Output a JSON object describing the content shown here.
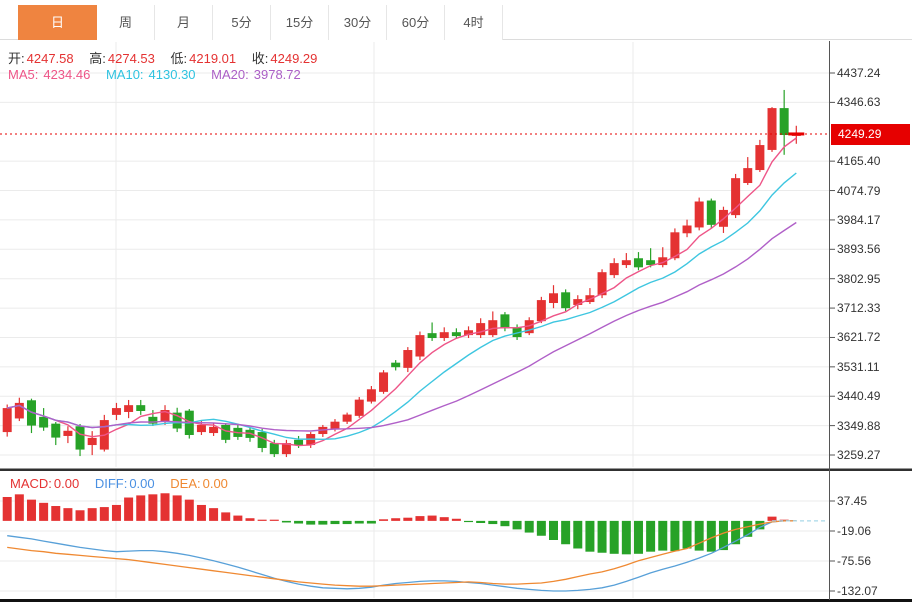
{
  "tabs": [
    {
      "id": "day",
      "label": "日",
      "active": true
    },
    {
      "id": "week",
      "label": "周",
      "active": false
    },
    {
      "id": "month",
      "label": "月",
      "active": false
    },
    {
      "id": "5min",
      "label": "5分",
      "active": false
    },
    {
      "id": "15min",
      "label": "15分",
      "active": false
    },
    {
      "id": "30min",
      "label": "30分",
      "active": false
    },
    {
      "id": "60min",
      "label": "60分",
      "active": false
    },
    {
      "id": "4hour",
      "label": "4时",
      "active": false
    }
  ],
  "info": {
    "open_label": "开:",
    "open": "4247.58",
    "high_label": "高:",
    "high": "4274.53",
    "low_label": "低:",
    "low": "4219.01",
    "close_label": "收:",
    "close": "4249.29",
    "ma5_label": "MA5:",
    "ma5": "4234.46",
    "ma10_label": "MA10:",
    "ma10": "4130.30",
    "ma20_label": "MA20:",
    "ma20": "3978.72"
  },
  "macd_info": {
    "macd_label": "MACD:",
    "macd": "0.00",
    "diff_label": "DIFF:",
    "diff": "0.00",
    "dea_label": "DEA:",
    "dea": "0.00"
  },
  "price_axis": {
    "current": "4249.29"
  },
  "colors": {
    "up": "#e43232",
    "down": "#27a227",
    "accent_tab": "#ef8440",
    "price_tag": "#e60000",
    "ma5": "#ee5588",
    "ma10": "#3ec6e0",
    "ma20": "#b060c8",
    "diff": "#58a0d8",
    "dea": "#ef8932",
    "grid": "#ebebeb",
    "border": "#303030"
  },
  "chart_data": {
    "type": "candlestick",
    "title": "",
    "periods": 66,
    "price_ticks": [
      4437.24,
      4346.63,
      null,
      4165.4,
      4074.79,
      3984.17,
      3893.56,
      3802.95,
      3712.33,
      3621.72,
      3531.11,
      3440.49,
      3349.88,
      3259.27
    ],
    "current_price": 4249.29,
    "ma_current": {
      "MA5": 4234.46,
      "MA10": 4130.3,
      "MA20": 3978.72
    },
    "candles": [
      [
        3330,
        3415,
        3316,
        3404
      ],
      [
        3372,
        3436,
        3364,
        3420
      ],
      [
        3428,
        3433,
        3327,
        3350
      ],
      [
        3377,
        3404,
        3334,
        3344
      ],
      [
        3356,
        3361,
        3290,
        3313
      ],
      [
        3318,
        3348,
        3296,
        3334
      ],
      [
        3348,
        3355,
        3256,
        3276
      ],
      [
        3290,
        3333,
        3259,
        3312
      ],
      [
        3276,
        3383,
        3270,
        3367
      ],
      [
        3383,
        3420,
        3367,
        3404
      ],
      [
        3392,
        3429,
        3373,
        3413
      ],
      [
        3413,
        3429,
        3383,
        3395
      ],
      [
        3377,
        3398,
        3349,
        3356
      ],
      [
        3361,
        3413,
        3352,
        3398
      ],
      [
        3390,
        3405,
        3330,
        3341
      ],
      [
        3396,
        3401,
        3310,
        3321
      ],
      [
        3330,
        3364,
        3321,
        3352
      ],
      [
        3327,
        3358,
        3318,
        3346
      ],
      [
        3352,
        3358,
        3296,
        3306
      ],
      [
        3343,
        3352,
        3306,
        3315
      ],
      [
        3337,
        3346,
        3300,
        3312
      ],
      [
        3330,
        3340,
        3268,
        3281
      ],
      [
        3296,
        3306,
        3253,
        3262
      ],
      [
        3262,
        3306,
        3253,
        3296
      ],
      [
        3306,
        3318,
        3281,
        3290
      ],
      [
        3290,
        3330,
        3281,
        3324
      ],
      [
        3324,
        3352,
        3315,
        3346
      ],
      [
        3340,
        3370,
        3332,
        3362
      ],
      [
        3362,
        3390,
        3355,
        3384
      ],
      [
        3380,
        3438,
        3374,
        3430
      ],
      [
        3424,
        3472,
        3418,
        3462
      ],
      [
        3454,
        3521,
        3448,
        3514
      ],
      [
        3544,
        3552,
        3520,
        3530
      ],
      [
        3528,
        3592,
        3515,
        3583
      ],
      [
        3563,
        3640,
        3552,
        3629
      ],
      [
        3635,
        3668,
        3611,
        3620
      ],
      [
        3620,
        3653,
        3611,
        3638
      ],
      [
        3638,
        3650,
        3617,
        3626
      ],
      [
        3629,
        3656,
        3620,
        3644
      ],
      [
        3629,
        3681,
        3620,
        3666
      ],
      [
        3629,
        3702,
        3623,
        3675
      ],
      [
        3693,
        3700,
        3641,
        3650
      ],
      [
        3653,
        3662,
        3614,
        3623
      ],
      [
        3635,
        3684,
        3629,
        3675
      ],
      [
        3672,
        3747,
        3666,
        3737
      ],
      [
        3728,
        3783,
        3712,
        3758
      ],
      [
        3761,
        3770,
        3703,
        3712
      ],
      [
        3722,
        3752,
        3709,
        3740
      ],
      [
        3731,
        3774,
        3725,
        3752
      ],
      [
        3752,
        3832,
        3743,
        3823
      ],
      [
        3814,
        3866,
        3805,
        3851
      ],
      [
        3845,
        3882,
        3836,
        3860
      ],
      [
        3866,
        3885,
        3829,
        3838
      ],
      [
        3860,
        3897,
        3838,
        3845
      ],
      [
        3845,
        3900,
        3838,
        3869
      ],
      [
        3866,
        3958,
        3860,
        3946
      ],
      [
        3943,
        3985,
        3931,
        3967
      ],
      [
        3961,
        4053,
        3952,
        4041
      ],
      [
        4044,
        4050,
        3958,
        3969
      ],
      [
        3963,
        4025,
        3944,
        4015
      ],
      [
        3999,
        4126,
        3990,
        4113
      ],
      [
        4098,
        4178,
        4092,
        4144
      ],
      [
        4138,
        4231,
        4132,
        4215
      ],
      [
        4200,
        4332,
        4194,
        4329
      ],
      [
        4329,
        4385,
        4185,
        4246
      ],
      [
        4247.58,
        4274.53,
        4219.01,
        4249.29
      ]
    ],
    "macd": {
      "ticks": [
        37.45,
        -19.06,
        -75.56,
        -132.07
      ],
      "hist": [
        45,
        50,
        40,
        34,
        28,
        24,
        20,
        24,
        26,
        30,
        44,
        48,
        50,
        52,
        48,
        40,
        30,
        24,
        16,
        10,
        5,
        2,
        1,
        -3,
        -5,
        -7,
        -7,
        -6,
        -6,
        -5,
        -5,
        3,
        5,
        6,
        9,
        10,
        7,
        4,
        -2,
        -4,
        -6,
        -10,
        -16,
        -22,
        -28,
        -36,
        -44,
        -52,
        -58,
        -60,
        -62,
        -63,
        -62,
        -58,
        -56,
        -57,
        -52,
        -56,
        -58,
        -55,
        -44,
        -30,
        -16,
        8,
        2,
        0
      ],
      "diff": [
        -28,
        -31,
        -34,
        -38,
        -42,
        -46,
        -50,
        -53,
        -56,
        -58,
        -57,
        -56,
        -56,
        -58,
        -61,
        -65,
        -70,
        -75,
        -81,
        -87,
        -94,
        -101,
        -108,
        -114,
        -119,
        -123,
        -126,
        -127,
        -128,
        -127,
        -125,
        -121,
        -118,
        -116,
        -114,
        -113,
        -113,
        -114,
        -116,
        -118,
        -121,
        -124,
        -127,
        -129,
        -131,
        -132,
        -132,
        -131,
        -129,
        -126,
        -121,
        -114,
        -106,
        -98,
        -91,
        -85,
        -78,
        -70,
        -61,
        -50,
        -38,
        -26,
        -12,
        -2,
        0,
        0
      ],
      "dea": [
        -50,
        -53,
        -56,
        -58,
        -61,
        -63,
        -65,
        -67,
        -69,
        -71,
        -73,
        -76,
        -79,
        -82,
        -85,
        -88,
        -91,
        -94,
        -97,
        -100,
        -103,
        -106,
        -109,
        -112,
        -115,
        -117,
        -119,
        -121,
        -122,
        -123,
        -123,
        -122,
        -121,
        -120,
        -119,
        -118,
        -117,
        -116,
        -115,
        -116,
        -118,
        -119,
        -119,
        -118,
        -117,
        -114,
        -110,
        -105,
        -100,
        -96,
        -90,
        -83,
        -75,
        -69,
        -63,
        -57,
        -52,
        -42,
        -32,
        -23,
        -16,
        -11,
        -6,
        -2,
        0,
        0
      ]
    }
  }
}
